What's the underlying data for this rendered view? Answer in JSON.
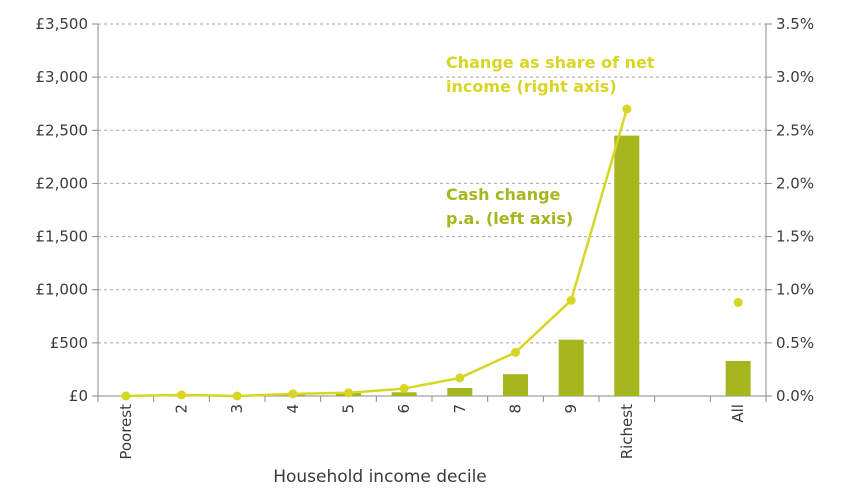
{
  "chart_data": {
    "type": "bar",
    "categories": [
      "Poorest",
      "2",
      "3",
      "4",
      "5",
      "6",
      "7",
      "8",
      "9",
      "Richest",
      "",
      "All"
    ],
    "xlabel": "Household income decile",
    "series": [
      {
        "name": "Cash change p.a. (left axis)",
        "type": "bar",
        "axis": "left",
        "color": "#a5b61e",
        "values": [
          5,
          15,
          5,
          25,
          30,
          35,
          75,
          205,
          530,
          2450,
          null,
          330
        ]
      },
      {
        "name": "Change as share of net income (right axis)",
        "type": "line",
        "axis": "right",
        "color": "#d8d624",
        "values": [
          0.0,
          0.01,
          0.0,
          0.02,
          0.03,
          0.07,
          0.17,
          0.41,
          0.9,
          2.7,
          null,
          0.88
        ],
        "connect_through": 9
      }
    ],
    "left_axis": {
      "ylim": [
        0,
        3500
      ],
      "ticks": [
        0,
        500,
        1000,
        1500,
        2000,
        2500,
        3000,
        3500
      ],
      "tick_labels": [
        "£0",
        "£500",
        "£1,000",
        "£1,500",
        "£2,000",
        "£2,500",
        "£3,000",
        "£3,500"
      ]
    },
    "right_axis": {
      "ylim": [
        0,
        3.5
      ],
      "ticks": [
        0,
        0.5,
        1.0,
        1.5,
        2.0,
        2.5,
        3.0,
        3.5
      ],
      "tick_labels": [
        "0.0%",
        "0.5%",
        "1.0%",
        "1.5%",
        "2.0%",
        "2.5%",
        "3.0%",
        "3.5%"
      ]
    },
    "annotations": [
      {
        "lines": [
          "Change as share of net",
          "income (right axis)"
        ],
        "color": "#d8d624"
      },
      {
        "lines": [
          "Cash change",
          "p.a. (left axis)"
        ],
        "color": "#a5b61e"
      }
    ],
    "grid": "horizontal-dashed",
    "legend": "inline-annotations"
  }
}
